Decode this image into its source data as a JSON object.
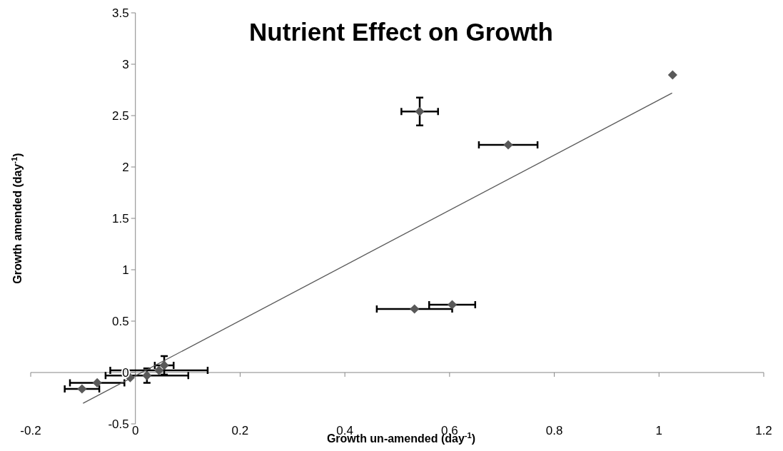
{
  "chart_data": {
    "type": "scatter",
    "title": "Nutrient Effect on Growth",
    "xlabel": "Growth un-amended (day$^{-1}$)",
    "ylabel": "Growth amended (day$^{-1}$)",
    "xlim": [
      -0.2,
      1.2
    ],
    "xticks": [
      -0.2,
      0,
      0.2,
      0.4,
      0.6,
      0.8,
      1,
      1.2
    ],
    "ylim": [
      -0.5,
      3.5
    ],
    "yticks": [
      -0.5,
      0,
      0.5,
      1,
      1.5,
      2,
      2.5,
      3,
      3.5
    ],
    "series": [
      {
        "marker": "diamond",
        "color": "#595959",
        "x": [
          -0.102,
          -0.073,
          -0.01,
          0.022,
          0.045,
          0.055,
          0.543,
          0.712,
          0.533,
          0.605,
          1.026
        ],
        "values": [
          -0.16,
          -0.1,
          -0.05,
          -0.03,
          0.02,
          0.07,
          2.54,
          2.215,
          0.618,
          0.66,
          2.896
        ],
        "errors": [
          null,
          null,
          null,
          0.07,
          null,
          0.09,
          0.135,
          null,
          null,
          null,
          null
        ],
        "xerrors": [
          0.033,
          0.052,
          null,
          0.079,
          0.093,
          0.018,
          0.035,
          0.056,
          0.072,
          0.044,
          null
        ]
      },
      {
        "type": "line",
        "color": "#595959",
        "x": [
          -0.1,
          1.025
        ],
        "values": [
          -0.3,
          2.72
        ],
        "line_style": "solid"
      }
    ]
  }
}
